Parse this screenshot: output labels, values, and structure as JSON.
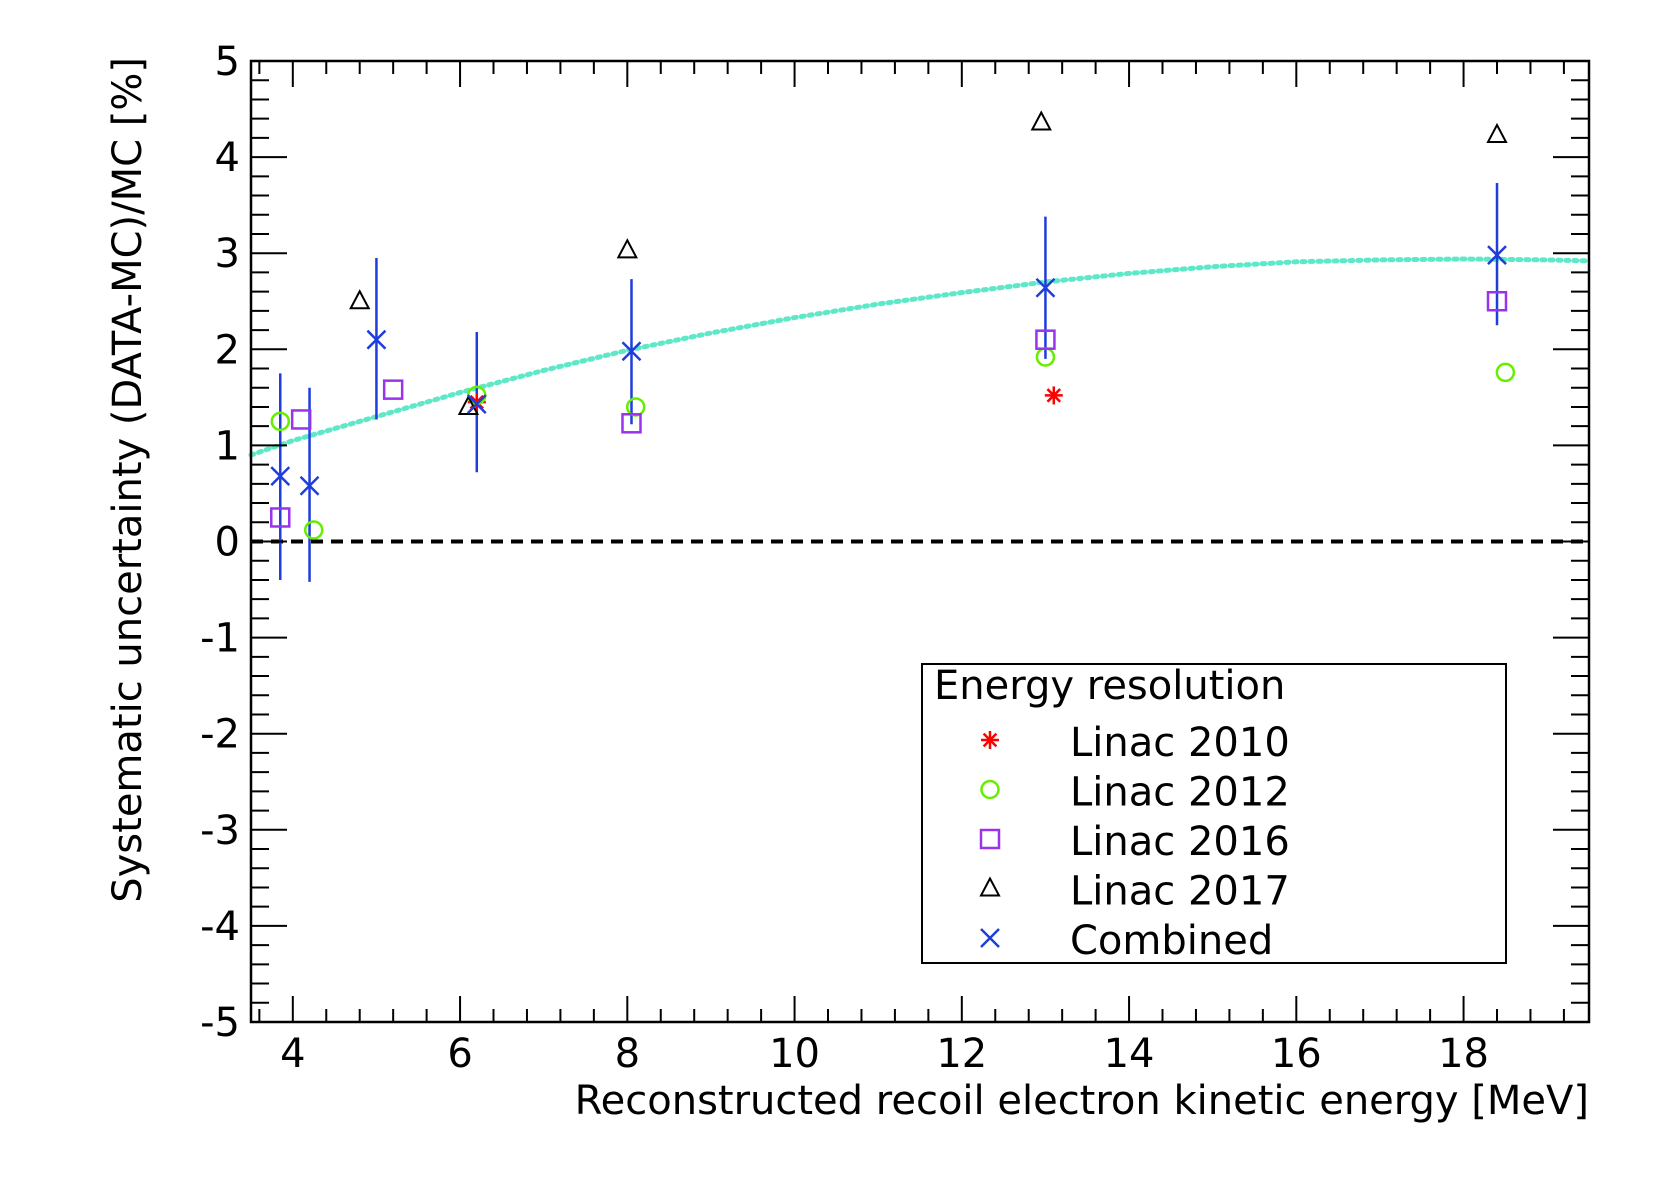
{
  "chart_data": {
    "type": "scatter",
    "xlabel": "Reconstructed recoil electron kinetic energy [MeV]",
    "ylabel": "Systematic uncertainty (DATA-MC)/MC  [%]",
    "xlim": [
      3.5,
      19.5
    ],
    "ylim": [
      -5,
      5
    ],
    "x_ticks": [
      4,
      6,
      8,
      10,
      12,
      14,
      16,
      18
    ],
    "y_ticks": [
      -5,
      -4,
      -3,
      -2,
      -1,
      0,
      1,
      2,
      3,
      4,
      5
    ],
    "grid": false,
    "legend": {
      "title": "Energy resolution",
      "placement": "bottom-right"
    },
    "series": [
      {
        "name": "Linac 2010",
        "marker": "star",
        "color": "#ff0000",
        "points": [
          {
            "x": 6.2,
            "y": 1.45
          },
          {
            "x": 13.1,
            "y": 1.52
          }
        ]
      },
      {
        "name": "Linac 2012",
        "marker": "circle",
        "color": "#66ee00",
        "points": [
          {
            "x": 3.85,
            "y": 1.25
          },
          {
            "x": 4.25,
            "y": 0.12
          },
          {
            "x": 6.2,
            "y": 1.52
          },
          {
            "x": 8.1,
            "y": 1.4
          },
          {
            "x": 13.0,
            "y": 1.92
          },
          {
            "x": 18.5,
            "y": 1.76
          }
        ]
      },
      {
        "name": "Linac 2016",
        "marker": "square",
        "color": "#9933ee",
        "points": [
          {
            "x": 3.85,
            "y": 0.25
          },
          {
            "x": 4.1,
            "y": 1.27
          },
          {
            "x": 5.2,
            "y": 1.58
          },
          {
            "x": 8.05,
            "y": 1.23
          },
          {
            "x": 13.0,
            "y": 2.1
          },
          {
            "x": 18.4,
            "y": 2.5
          }
        ]
      },
      {
        "name": "Linac 2017",
        "marker": "triangle",
        "color": "#000000",
        "points": [
          {
            "x": 4.8,
            "y": 2.5
          },
          {
            "x": 6.1,
            "y": 1.4
          },
          {
            "x": 8.0,
            "y": 3.03
          },
          {
            "x": 12.95,
            "y": 4.36
          },
          {
            "x": 18.4,
            "y": 4.23
          }
        ]
      },
      {
        "name": "Combined",
        "marker": "x",
        "color": "#1f3ddb",
        "points": [
          {
            "x": 3.85,
            "y": 0.68,
            "yerr_low": -0.4,
            "yerr_high": 1.75
          },
          {
            "x": 4.2,
            "y": 0.58,
            "yerr_low": -0.42,
            "yerr_high": 1.6
          },
          {
            "x": 5.0,
            "y": 2.1,
            "yerr_low": 1.27,
            "yerr_high": 2.95
          },
          {
            "x": 6.2,
            "y": 1.43,
            "yerr_low": 0.72,
            "yerr_high": 2.18
          },
          {
            "x": 8.05,
            "y": 1.98,
            "yerr_low": 1.22,
            "yerr_high": 2.73
          },
          {
            "x": 13.0,
            "y": 2.64,
            "yerr_low": 1.9,
            "yerr_high": 3.38
          },
          {
            "x": 18.4,
            "y": 2.98,
            "yerr_low": 2.25,
            "yerr_high": 3.73
          }
        ]
      }
    ],
    "reference_lines": [
      {
        "kind": "horizontal",
        "y": 0,
        "style": "dashed",
        "color": "#000000"
      }
    ],
    "fit_curve": {
      "style": "dotted",
      "color": "#5fe8c8",
      "points": [
        [
          3.5,
          0.9
        ],
        [
          4.0,
          1.05
        ],
        [
          5.0,
          1.3
        ],
        [
          6.0,
          1.55
        ],
        [
          7.0,
          1.78
        ],
        [
          8.0,
          1.99
        ],
        [
          9.0,
          2.17
        ],
        [
          10.0,
          2.33
        ],
        [
          11.0,
          2.47
        ],
        [
          12.0,
          2.59
        ],
        [
          13.0,
          2.7
        ],
        [
          14.0,
          2.79
        ],
        [
          15.0,
          2.86
        ],
        [
          16.0,
          2.91
        ],
        [
          17.0,
          2.93
        ],
        [
          18.0,
          2.94
        ],
        [
          19.0,
          2.93
        ],
        [
          19.5,
          2.92
        ]
      ]
    }
  }
}
